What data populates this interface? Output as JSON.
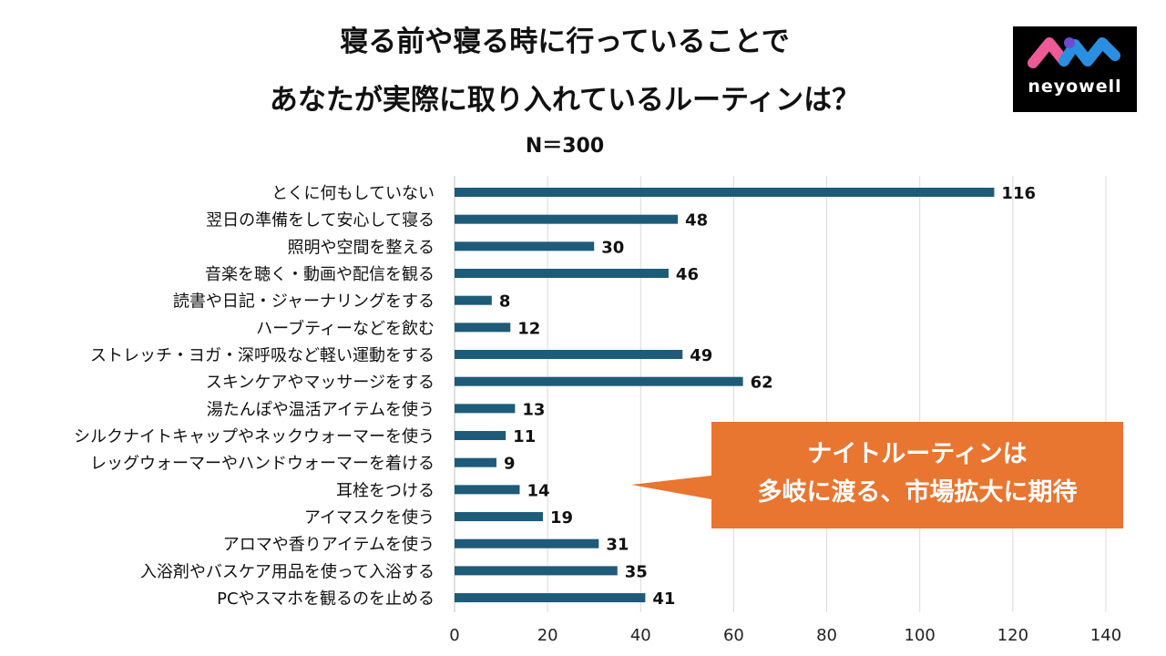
{
  "title": {
    "line1": "寝る前や寝る時に行っていることで",
    "line2": "あなたが実際に取り入れているルーティンは？",
    "sample": "N＝300"
  },
  "logo": {
    "text": "neyowell"
  },
  "callout": {
    "line1": "ナイトルーティンは",
    "line2": "多岐に渡る、市場拡大に期待"
  },
  "colors": {
    "bar": "#1d5b79",
    "callout": "#e87530",
    "grid": "#d9d9d9"
  },
  "chart_data": {
    "type": "bar",
    "orientation": "horizontal",
    "categories": [
      "とくに何もしていない",
      "翌日の準備をして安心して寝る",
      "照明や空間を整える",
      "音楽を聴く・動画や配信を観る",
      "読書や日記・ジャーナリングをする",
      "ハーブティーなどを飲む",
      "ストレッチ・ヨガ・深呼吸など軽い運動をする",
      "スキンケアやマッサージをする",
      "湯たんぽや温活アイテムを使う",
      "シルクナイトキャップやネックウォーマーを使う",
      "レッグウォーマーやハンドウォーマーを着ける",
      "耳栓をつける",
      "アイマスクを使う",
      "アロマや香りアイテムを使う",
      "入浴剤やバスケア用品を使って入浴する",
      "PCやスマホを観るのを止める"
    ],
    "values": [
      116,
      48,
      30,
      46,
      8,
      12,
      49,
      62,
      13,
      11,
      9,
      14,
      19,
      31,
      35,
      41
    ],
    "xlim": [
      0,
      140
    ],
    "xticks": [
      "0",
      "20",
      "40",
      "60",
      "80",
      "100",
      "120",
      "140"
    ],
    "grid": true,
    "title": "寝る前や寝る時に行っていることで あなたが実際に取り入れているルーティンは？"
  }
}
